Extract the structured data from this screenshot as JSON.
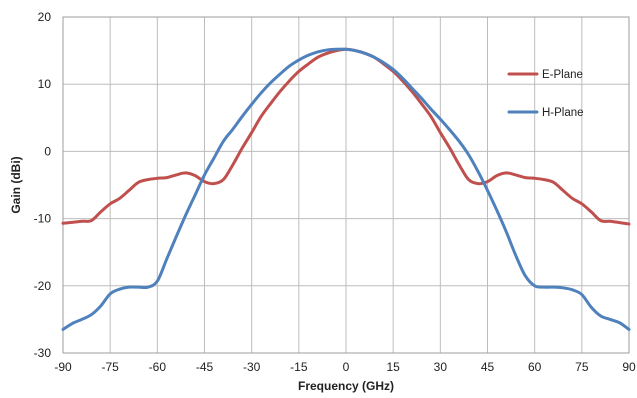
{
  "chart_data": {
    "type": "line",
    "xlabel": "Frequency (GHz)",
    "ylabel": "Gain (dBi)",
    "xlim": [
      -90,
      90
    ],
    "ylim": [
      -30,
      20
    ],
    "x_ticks": [
      "-90",
      "-75",
      "-60",
      "-45",
      "-30",
      "-15",
      "0",
      "15",
      "30",
      "45",
      "60",
      "75",
      "90"
    ],
    "y_ticks": [
      "20",
      "10",
      "0",
      "-10",
      "-20",
      "-30"
    ],
    "x_tick_values": [
      -90,
      -75,
      -60,
      -45,
      -30,
      -15,
      0,
      15,
      30,
      45,
      60,
      75,
      90
    ],
    "y_tick_values": [
      20,
      10,
      0,
      -10,
      -20,
      -30
    ],
    "grid": true,
    "legend_position": "right",
    "series": [
      {
        "name": "E-Plane",
        "color": "#c0504d",
        "x": [
          -90,
          -84,
          -81,
          -78,
          -75,
          -72,
          -69,
          -66,
          -63,
          -60,
          -57,
          -54,
          -51,
          -48,
          -45,
          -42,
          -39,
          -36,
          -33,
          -30,
          -27,
          -24,
          -21,
          -18,
          -15,
          -12,
          -9,
          -6,
          -3,
          0,
          3,
          6,
          9,
          12,
          15,
          18,
          21,
          24,
          27,
          30,
          33,
          36,
          39,
          42,
          45,
          48,
          51,
          54,
          57,
          60,
          63,
          66,
          69,
          72,
          75,
          78,
          81,
          84,
          87,
          90
        ],
        "values": [
          -10.7,
          -10.4,
          -10.3,
          -9,
          -7.8,
          -7,
          -5.8,
          -4.6,
          -4.2,
          -4,
          -3.9,
          -3.5,
          -3.2,
          -3.6,
          -4.5,
          -4.8,
          -4.2,
          -2,
          0.5,
          2.8,
          5.2,
          7.1,
          8.9,
          10.5,
          11.9,
          13,
          14,
          14.6,
          15,
          15.2,
          15,
          14.6,
          14,
          13,
          11.9,
          10.5,
          8.9,
          7.1,
          5.2,
          2.8,
          0.5,
          -2,
          -4.2,
          -4.8,
          -4.5,
          -3.6,
          -3.2,
          -3.5,
          -3.9,
          -4,
          -4.2,
          -4.6,
          -5.8,
          -7,
          -7.8,
          -9,
          -10.3,
          -10.4,
          -10.6,
          -10.8
        ]
      },
      {
        "name": "H-Plane",
        "color": "#4f81bd",
        "x": [
          -90,
          -87,
          -84,
          -81,
          -78,
          -75,
          -72,
          -69,
          -66,
          -63,
          -60,
          -57,
          -54,
          -51,
          -48,
          -45,
          -42,
          -39,
          -36,
          -33,
          -30,
          -27,
          -24,
          -21,
          -18,
          -15,
          -12,
          -9,
          -6,
          -3,
          0,
          3,
          6,
          9,
          12,
          15,
          18,
          21,
          24,
          27,
          30,
          33,
          36,
          39,
          42,
          45,
          48,
          51,
          54,
          57,
          60,
          63,
          66,
          69,
          72,
          75,
          78,
          81,
          84,
          87,
          90
        ],
        "values": [
          -26.5,
          -25.6,
          -25,
          -24.3,
          -23,
          -21.2,
          -20.5,
          -20.2,
          -20.2,
          -20.2,
          -19.3,
          -16,
          -12.7,
          -9.5,
          -6.5,
          -3.5,
          -1,
          1.5,
          3.3,
          5.2,
          7,
          8.7,
          10.2,
          11.5,
          12.7,
          13.6,
          14.3,
          14.8,
          15.1,
          15.2,
          15.2,
          15,
          14.6,
          14,
          13.2,
          12.2,
          10.9,
          9.4,
          7.9,
          6.3,
          4.8,
          3.2,
          1.5,
          -0.5,
          -3,
          -5.8,
          -8.8,
          -12,
          -15.5,
          -18.5,
          -20,
          -20.2,
          -20.2,
          -20.3,
          -20.6,
          -21.3,
          -23.2,
          -24.5,
          -25,
          -25.5,
          -26.5
        ]
      }
    ]
  }
}
